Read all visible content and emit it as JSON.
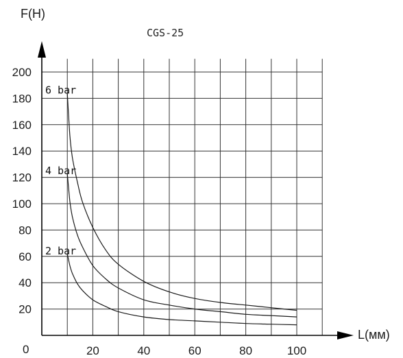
{
  "chart_data": {
    "type": "line",
    "title": "CGS-25",
    "ylabel": "F(H)",
    "xlabel": "L(мм)",
    "origin_label": "0",
    "xlim": [
      0,
      110
    ],
    "ylim": [
      0,
      210
    ],
    "x_ticks": [
      20,
      40,
      60,
      80,
      100
    ],
    "y_ticks": [
      20,
      40,
      60,
      80,
      100,
      120,
      140,
      160,
      180,
      200
    ],
    "grid": true,
    "series": [
      {
        "name": "6 bar",
        "x": [
          10,
          11,
          12,
          14,
          16,
          20,
          25,
          30,
          40,
          50,
          60,
          70,
          80,
          90,
          100
        ],
        "y": [
          184,
          152,
          135,
          116,
          101,
          82,
          65,
          54,
          41,
          33,
          28,
          25,
          23,
          21,
          19
        ]
      },
      {
        "name": "4 bar",
        "x": [
          10,
          11,
          12,
          14,
          16,
          20,
          25,
          30,
          40,
          50,
          60,
          70,
          80,
          90,
          100
        ],
        "y": [
          123,
          102,
          90,
          76,
          67,
          53,
          43,
          36,
          27,
          23,
          20,
          18,
          16,
          15,
          14
        ]
      },
      {
        "name": "2 bar",
        "x": [
          10,
          11,
          12,
          14,
          16,
          20,
          25,
          30,
          40,
          50,
          60,
          70,
          80,
          90,
          100
        ],
        "y": [
          62,
          53,
          47,
          39,
          34,
          27,
          22,
          18,
          14,
          12,
          11,
          10,
          9,
          8.5,
          8
        ]
      }
    ]
  }
}
